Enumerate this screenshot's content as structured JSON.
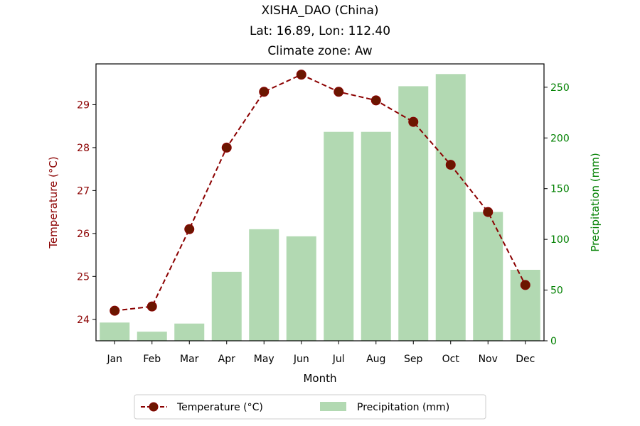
{
  "chart_data": {
    "type": "bar+line",
    "title_lines": [
      "XISHA_DAO (China)",
      "Lat: 16.89, Lon: 112.40",
      "Climate zone: Aw"
    ],
    "xlabel": "Month",
    "ylabel_left": "Temperature (°C)",
    "ylabel_right": "Precipitation (mm)",
    "categories": [
      "Jan",
      "Feb",
      "Mar",
      "Apr",
      "May",
      "Jun",
      "Jul",
      "Aug",
      "Sep",
      "Oct",
      "Nov",
      "Dec"
    ],
    "series": [
      {
        "name": "Temperature (°C)",
        "kind": "line",
        "axis": "left",
        "values": [
          24.2,
          24.3,
          26.1,
          28.0,
          29.3,
          29.7,
          29.3,
          29.1,
          28.6,
          27.6,
          26.5,
          24.8
        ]
      },
      {
        "name": "Precipitation (mm)",
        "kind": "bar",
        "axis": "right",
        "values": [
          18,
          9,
          17,
          68,
          110,
          103,
          206,
          206,
          251,
          263,
          127,
          70
        ]
      }
    ],
    "ylim_left": [
      23.5,
      29.95
    ],
    "ylim_right": [
      0,
      273
    ],
    "yticks_left": [
      24,
      25,
      26,
      27,
      28,
      29
    ],
    "yticks_right": [
      0,
      50,
      100,
      150,
      200,
      250
    ],
    "legend_position": "bottom-center",
    "colors": {
      "temperature_line": "#8b0000",
      "temperature_marker": "#6b1600",
      "precipitation_bar": "#b2d9b2",
      "left_axis_text": "#8b0000",
      "right_axis_text": "#008000"
    }
  }
}
